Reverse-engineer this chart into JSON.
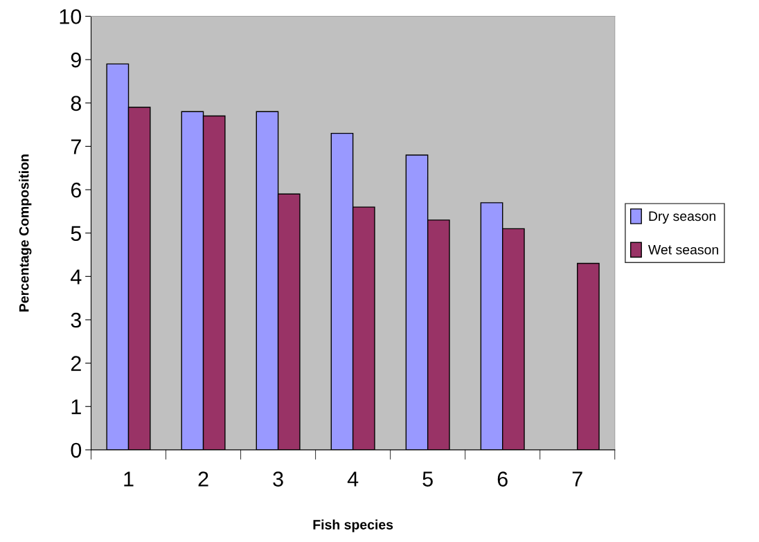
{
  "chart_data": {
    "type": "bar",
    "xlabel": "Fish species",
    "ylabel": "Percentage Composition",
    "categories": [
      "1",
      "2",
      "3",
      "4",
      "5",
      "6",
      "7"
    ],
    "series": [
      {
        "name": "Dry season",
        "color": "#9999ff",
        "values": [
          8.9,
          7.8,
          7.8,
          7.3,
          6.8,
          5.7,
          null
        ]
      },
      {
        "name": "Wet season",
        "color": "#993366",
        "values": [
          7.9,
          7.7,
          5.9,
          5.6,
          5.3,
          5.1,
          4.3
        ]
      }
    ],
    "ylim": [
      0,
      10
    ],
    "yticks": [
      0,
      1,
      2,
      3,
      4,
      5,
      6,
      7,
      8,
      9,
      10
    ],
    "grid": false,
    "legend": "right"
  }
}
